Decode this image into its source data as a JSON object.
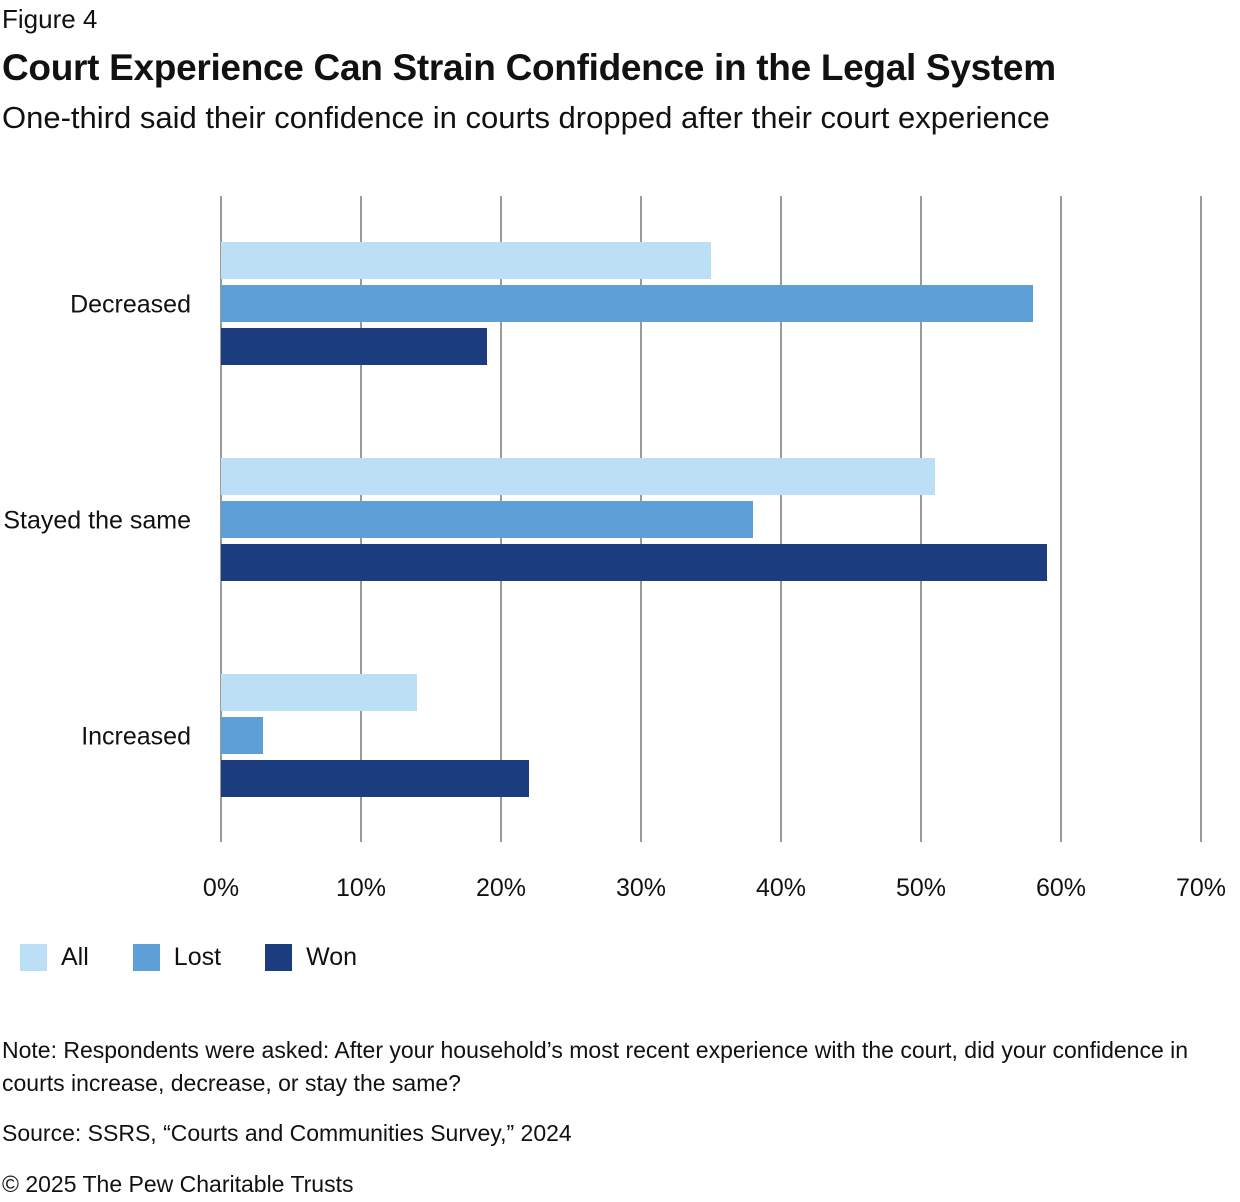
{
  "figure_label": "Figure 4",
  "title": "Court Experience Can Strain Confidence in the Legal System",
  "subtitle": "One-third said their confidence in courts dropped after their court experience",
  "chart_data": {
    "type": "bar",
    "orientation": "horizontal",
    "categories": [
      "Decreased",
      "Stayed the same",
      "Increased"
    ],
    "series": [
      {
        "name": "All",
        "color": "#bddff5",
        "values": [
          35,
          51,
          14
        ]
      },
      {
        "name": "Lost",
        "color": "#5d9fd6",
        "values": [
          58,
          38,
          3
        ]
      },
      {
        "name": "Won",
        "color": "#1c3c80",
        "values": [
          19,
          59,
          22
        ]
      }
    ],
    "x_ticks": [
      "0%",
      "10%",
      "20%",
      "30%",
      "40%",
      "50%",
      "60%",
      "70%"
    ],
    "xlim": [
      0,
      70
    ],
    "grid": true,
    "legend_position": "bottom-left"
  },
  "note": "Note: Respondents were asked: After your household’s most recent experience with the court, did your confidence in courts increase, decrease, or stay the same?",
  "source": "Source: SSRS, “Courts and Communities Survey,” 2024",
  "copyright": "© 2025 The Pew Charitable Trusts"
}
